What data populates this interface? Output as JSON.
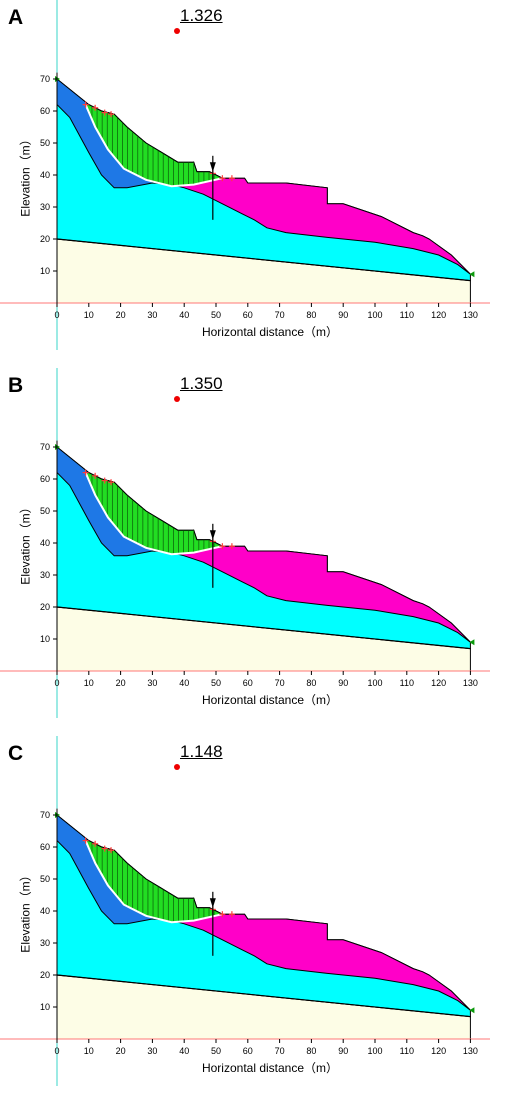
{
  "colors": {
    "base_layer": "#fdfde6",
    "cyan_layer": "#00ffff",
    "blue_layer": "#1e78e6",
    "magenta_layer": "#ff00c8",
    "slide_mass": "#22dd22",
    "slip_surface": "#ffffff",
    "center_dot": "#ee0000",
    "surface_marks": "#ff3b3b",
    "vertical_axis_line": "#3ad6c8",
    "horizontal_zero_line": "#ff7777"
  },
  "shared_axes": {
    "xlabel": "Horizontal distance（m）",
    "ylabel": "Elevation（m）",
    "x_ticks": [
      "0",
      "10",
      "20",
      "30",
      "40",
      "50",
      "60",
      "70",
      "80",
      "90",
      "100",
      "110",
      "120",
      "130"
    ],
    "y_ticks": [
      "10",
      "20",
      "30",
      "40",
      "50",
      "60",
      "70"
    ]
  },
  "panels": [
    {
      "letter": "A",
      "factor_of_safety": "1.326"
    },
    {
      "letter": "B",
      "factor_of_safety": "1.350"
    },
    {
      "letter": "C",
      "factor_of_safety": "1.148"
    }
  ]
}
